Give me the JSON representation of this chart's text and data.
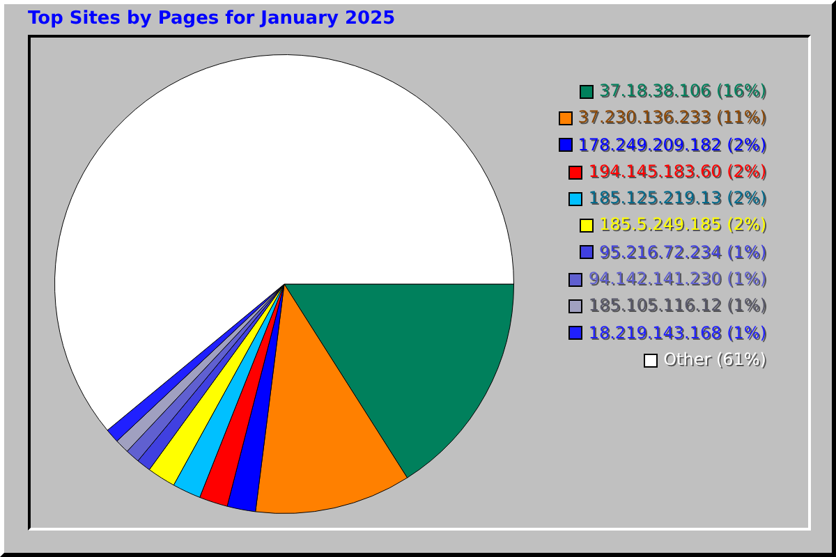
{
  "chart_data": {
    "type": "pie",
    "title": "Top Sites by Pages for January 2025",
    "categories": [
      "37.18.38.106",
      "37.230.136.233",
      "178.249.209.182",
      "194.145.183.60",
      "185.125.219.13",
      "185.5.249.185",
      "95.216.72.234",
      "94.142.141.230",
      "185.105.116.12",
      "18.219.143.168",
      "Other"
    ],
    "values": [
      16,
      11,
      2,
      2,
      2,
      2,
      1,
      1,
      1,
      1,
      61
    ],
    "value_labels": [
      "(16%)",
      "(11%)",
      "(2%)",
      "(2%)",
      "(2%)",
      "(2%)",
      "(1%)",
      "(1%)",
      "(1%)",
      "(1%)",
      "(61%)"
    ],
    "colors": [
      "#00805c",
      "#ff8000",
      "#0000ff",
      "#ff0000",
      "#00c0ff",
      "#ffff00",
      "#4040e0",
      "#6060d0",
      "#a0a0c0",
      "#2020ff",
      "#ffffff"
    ],
    "legend": "right"
  }
}
